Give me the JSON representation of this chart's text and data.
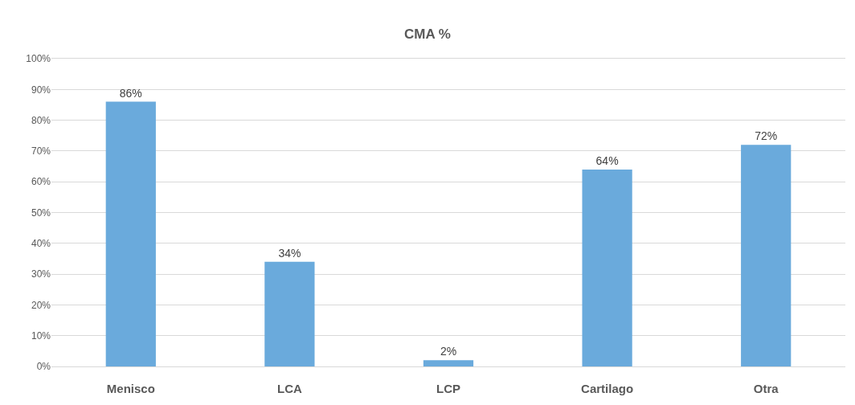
{
  "chart_data": {
    "type": "bar",
    "title": "CMA %",
    "categories": [
      "Menisco",
      "LCA",
      "LCP",
      "Cartilago",
      "Otra"
    ],
    "values": [
      86,
      34,
      2,
      64,
      72
    ],
    "color": "#6aaadc",
    "value_labels": [
      "86%",
      "34%",
      "2%",
      "64%",
      "72%"
    ],
    "ylim": [
      0,
      100
    ],
    "yticks": [
      {
        "value": 0,
        "label": "0%"
      },
      {
        "value": 10,
        "label": "10%"
      },
      {
        "value": 20,
        "label": "20%"
      },
      {
        "value": 30,
        "label": "30%"
      },
      {
        "value": 40,
        "label": "40%"
      },
      {
        "value": 50,
        "label": "50%"
      },
      {
        "value": 60,
        "label": "60%"
      },
      {
        "value": 70,
        "label": "70%"
      },
      {
        "value": 80,
        "label": "80%"
      },
      {
        "value": 90,
        "label": "90%"
      },
      {
        "value": 100,
        "label": "100%"
      }
    ],
    "grid": "y"
  }
}
